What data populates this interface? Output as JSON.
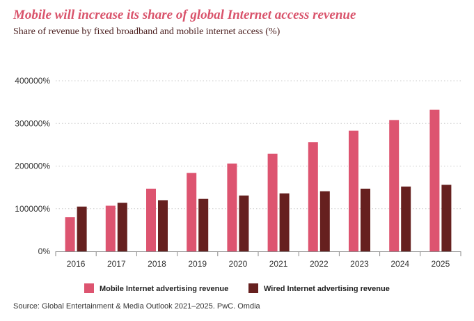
{
  "chart_data": {
    "type": "bar",
    "title": "Mobile will increase its share of global Internet access revenue",
    "subtitle": "Share of revenue by fixed broadband and mobile internet access (%)",
    "source": "Source: Global Entertainment & Media Outlook 2021–2025. PwC. Omdia",
    "categories": [
      "2016",
      "2017",
      "2018",
      "2019",
      "2020",
      "2021",
      "2022",
      "2023",
      "2024",
      "2025"
    ],
    "series": [
      {
        "name": "Mobile Internet advertising revenue",
        "color": "#dd5470",
        "values": [
          80000,
          107000,
          147000,
          184000,
          206000,
          229000,
          256000,
          283000,
          308000,
          332000
        ]
      },
      {
        "name": "Wired Internet advertising revenue",
        "color": "#66201f",
        "values": [
          105000,
          114000,
          120000,
          123000,
          131000,
          136000,
          141000,
          147000,
          152000,
          156000
        ]
      }
    ],
    "ylim": [
      0,
      400000
    ],
    "yticks": [
      0,
      100000,
      200000,
      300000,
      400000
    ],
    "ytick_labels": [
      "0%",
      "100000%",
      "200000%",
      "300000%",
      "400000%"
    ],
    "grid": true,
    "legend": "bottom-center",
    "xlabel": "",
    "ylabel": ""
  }
}
